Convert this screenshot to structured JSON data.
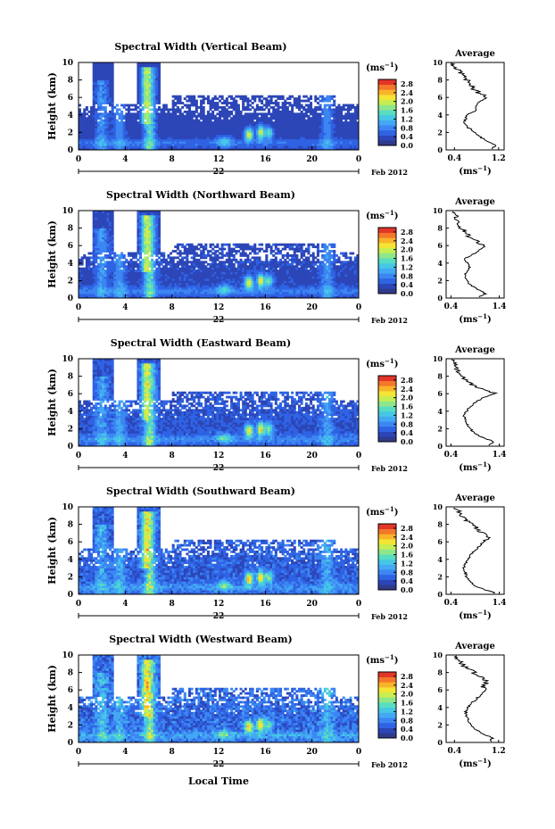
{
  "figure": {
    "date_label": "Feb 2012",
    "day_label": "22",
    "xlabel": "Local Time",
    "ylabel": "Height (km)",
    "cbar_unit": "(ms",
    "cbar_unit_exp": "−1",
    "avg_title": "Average",
    "avg_xlabel": "(ms",
    "avg_xlabel_exp": "−1",
    "colorbar_colors": [
      "#303a8c",
      "#2c46b8",
      "#2f63e4",
      "#3c86f2",
      "#43a9f4",
      "#45c8e6",
      "#58ddbf",
      "#8ee78a",
      "#c6ee52",
      "#f4e434",
      "#f9b42a",
      "#f4772a",
      "#e23528"
    ]
  },
  "chart_data": [
    {
      "type": "heatmap",
      "title": "Spectral Width (Vertical Beam)",
      "xlabel": "Local Time",
      "ylabel": "Height (km)",
      "xticks": [
        "0",
        "4",
        "8",
        "12",
        "16",
        "20",
        "0"
      ],
      "yticks": [
        "0",
        "2",
        "4",
        "6",
        "8",
        "10"
      ],
      "xlim": [
        0,
        24
      ],
      "ylim": [
        0,
        10
      ],
      "colorbar_ticks": [
        "0.0",
        "0.4",
        "0.8",
        "1.2",
        "1.6",
        "2.0",
        "2.4",
        "2.8"
      ],
      "colorbar_range": [
        0,
        3.0
      ],
      "profile": {
        "title": "Average",
        "xlabel": "(ms−1)",
        "xticks": [
          "0.4",
          "1.2"
        ],
        "xlim": [
          0.25,
          1.3
        ],
        "height": [
          0.2,
          0.5,
          1.0,
          1.5,
          2.0,
          2.5,
          3.0,
          3.5,
          4.0,
          4.5,
          5.0,
          5.5,
          6.0,
          6.5,
          7.0,
          7.5,
          8.0,
          8.5,
          9.0,
          9.5,
          9.8
        ],
        "width": [
          1.1,
          1.15,
          0.98,
          0.86,
          0.78,
          0.66,
          0.58,
          0.6,
          0.63,
          0.78,
          0.8,
          0.85,
          0.98,
          0.85,
          0.74,
          0.7,
          0.62,
          0.58,
          0.48,
          0.42,
          0.38
        ]
      }
    },
    {
      "type": "heatmap",
      "title": "Spectral Width (Northward Beam)",
      "xlabel": "Local Time",
      "ylabel": "Height (km)",
      "xticks": [
        "0",
        "4",
        "8",
        "12",
        "16",
        "20",
        "0"
      ],
      "yticks": [
        "0",
        "2",
        "4",
        "6",
        "8",
        "10"
      ],
      "xlim": [
        0,
        24
      ],
      "ylim": [
        0,
        10
      ],
      "colorbar_ticks": [
        "0.0",
        "0.4",
        "0.8",
        "1.2",
        "1.6",
        "2.0",
        "2.4",
        "2.8"
      ],
      "colorbar_range": [
        0,
        3.0
      ],
      "profile": {
        "title": "Average",
        "xlabel": "(ms−1)",
        "xticks": [
          "0.4",
          "1.4"
        ],
        "xlim": [
          0.3,
          1.5
        ],
        "height": [
          0.2,
          0.5,
          1.0,
          1.5,
          2.0,
          2.5,
          3.0,
          3.5,
          4.0,
          4.5,
          5.0,
          5.5,
          6.0,
          6.5,
          7.0,
          7.5,
          8.0,
          8.5,
          9.0,
          9.5,
          9.8
        ],
        "width": [
          1.0,
          1.12,
          0.95,
          0.8,
          0.72,
          0.68,
          0.72,
          0.78,
          0.74,
          0.68,
          0.85,
          1.0,
          1.1,
          0.92,
          0.78,
          0.7,
          0.62,
          0.58,
          0.52,
          0.48,
          0.42
        ]
      }
    },
    {
      "type": "heatmap",
      "title": "Spectral Width (Eastward Beam)",
      "xlabel": "Local Time",
      "ylabel": "Height (km)",
      "xticks": [
        "0",
        "4",
        "8",
        "12",
        "16",
        "20",
        "0"
      ],
      "yticks": [
        "0",
        "2",
        "4",
        "6",
        "8",
        "10"
      ],
      "xlim": [
        0,
        24
      ],
      "ylim": [
        0,
        10
      ],
      "colorbar_ticks": [
        "0.0",
        "0.4",
        "0.8",
        "1.2",
        "1.6",
        "2.0",
        "2.4",
        "2.8"
      ],
      "colorbar_range": [
        0,
        3.0
      ],
      "profile": {
        "title": "Average",
        "xlabel": "(ms−1)",
        "xticks": [
          "0.4",
          "1.4"
        ],
        "xlim": [
          0.3,
          1.5
        ],
        "height": [
          0.2,
          0.5,
          1.0,
          1.5,
          2.0,
          2.5,
          3.0,
          3.5,
          4.0,
          4.5,
          5.0,
          5.5,
          6.0,
          6.5,
          7.0,
          7.5,
          8.0,
          8.5,
          9.0,
          9.5,
          9.8
        ],
        "width": [
          1.2,
          1.3,
          1.05,
          0.88,
          0.8,
          0.74,
          0.7,
          0.66,
          0.72,
          0.8,
          0.9,
          1.05,
          1.32,
          1.05,
          0.85,
          0.72,
          0.62,
          0.55,
          0.5,
          0.45,
          0.42
        ]
      }
    },
    {
      "type": "heatmap",
      "title": "Spectral Width (Southward Beam)",
      "xlabel": "Local Time",
      "ylabel": "Height (km)",
      "xticks": [
        "0",
        "4",
        "8",
        "12",
        "16",
        "20",
        "0"
      ],
      "yticks": [
        "0",
        "2",
        "4",
        "6",
        "8",
        "10"
      ],
      "xlim": [
        0,
        24
      ],
      "ylim": [
        0,
        10
      ],
      "colorbar_ticks": [
        "0.0",
        "0.4",
        "0.8",
        "1.2",
        "1.6",
        "2.0",
        "2.4",
        "2.8"
      ],
      "colorbar_range": [
        0,
        3.0
      ],
      "profile": {
        "title": "Average",
        "xlabel": "(ms−1)",
        "xticks": [
          "0.4",
          "1.4"
        ],
        "xlim": [
          0.3,
          1.5
        ],
        "height": [
          0.2,
          0.5,
          1.0,
          1.5,
          2.0,
          2.5,
          3.0,
          3.5,
          4.0,
          4.5,
          5.0,
          5.5,
          6.0,
          6.5,
          7.0,
          7.5,
          8.0,
          8.5,
          9.0,
          9.5,
          9.8
        ],
        "width": [
          1.3,
          1.1,
          0.9,
          0.78,
          0.72,
          0.7,
          0.66,
          0.7,
          0.76,
          0.8,
          0.9,
          0.98,
          1.08,
          1.18,
          1.05,
          0.95,
          0.82,
          0.72,
          0.62,
          0.55,
          0.48
        ]
      }
    },
    {
      "type": "heatmap",
      "title": "Spectral Width (Westward Beam)",
      "xlabel": "Local Time",
      "ylabel": "Height (km)",
      "xticks": [
        "0",
        "4",
        "8",
        "12",
        "16",
        "20",
        "0"
      ],
      "yticks": [
        "0",
        "2",
        "4",
        "6",
        "8",
        "10"
      ],
      "xlim": [
        0,
        24
      ],
      "ylim": [
        0,
        10
      ],
      "colorbar_ticks": [
        "0.0",
        "0.4",
        "0.8",
        "1.2",
        "1.6",
        "2.0",
        "2.4",
        "2.8"
      ],
      "colorbar_range": [
        0,
        3.0
      ],
      "profile": {
        "title": "Average",
        "xlabel": "(ms−1)",
        "xticks": [
          "0.4",
          "1.2"
        ],
        "xlim": [
          0.25,
          1.3
        ],
        "height": [
          0.2,
          0.5,
          1.0,
          1.5,
          2.0,
          2.5,
          3.0,
          3.5,
          4.0,
          4.5,
          5.0,
          5.5,
          6.0,
          6.5,
          7.0,
          7.5,
          8.0,
          8.5,
          9.0,
          9.5,
          9.8
        ],
        "width": [
          1.05,
          1.1,
          0.9,
          0.78,
          0.7,
          0.66,
          0.62,
          0.6,
          0.64,
          0.72,
          0.8,
          0.88,
          0.98,
          0.92,
          1.02,
          0.86,
          0.75,
          0.62,
          0.52,
          0.46,
          0.4
        ]
      }
    }
  ]
}
